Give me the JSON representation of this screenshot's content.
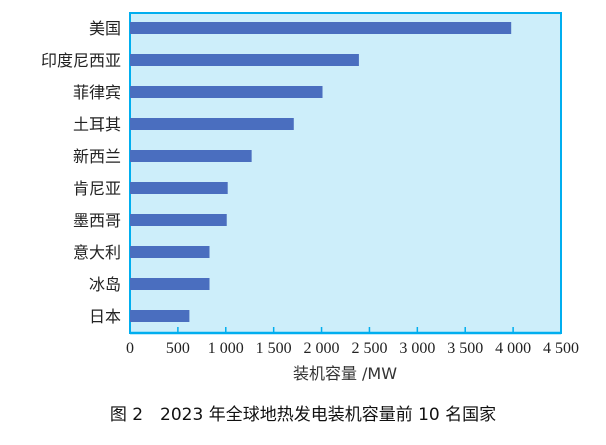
{
  "chart_data": {
    "type": "bar",
    "orientation": "horizontal",
    "categories": [
      "美国",
      "印度尼西亚",
      "菲律宾",
      "土耳其",
      "新西兰",
      "肯尼亚",
      "墨西哥",
      "意大利",
      "冰岛",
      "日本"
    ],
    "values": [
      3980,
      2390,
      2010,
      1710,
      1270,
      1020,
      1010,
      830,
      830,
      620
    ],
    "xlabel": "装机容量 /MW",
    "ylabel": "",
    "xlim": [
      0,
      4500
    ],
    "xticks": [
      0,
      500,
      1000,
      1500,
      2000,
      2500,
      3000,
      3500,
      4000,
      4500
    ],
    "xtick_labels": [
      "0",
      "500",
      "1 000",
      "1 500",
      "2 000",
      "2 500",
      "3 000",
      "3 500",
      "4 000",
      "4 500"
    ],
    "grid": false,
    "colors": {
      "bar": "#4a6ebf",
      "plot_bg": "#cdeefa",
      "frame": "#00aeef"
    }
  },
  "caption": "图 2　2023 年全球地热发电装机容量前 10 名国家"
}
